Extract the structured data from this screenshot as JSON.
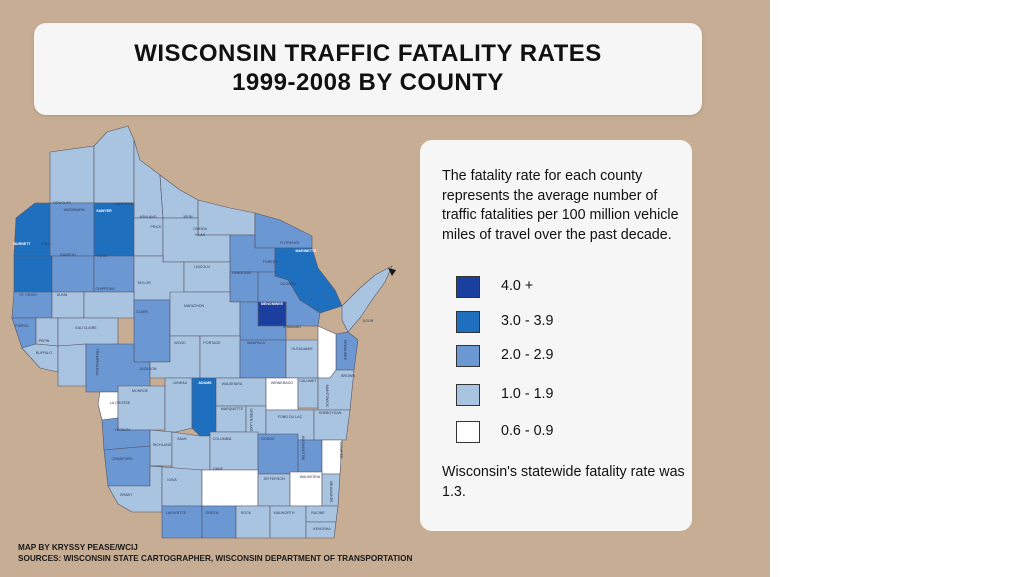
{
  "title": {
    "line1": "WISCONSIN TRAFFIC FATALITY RATES",
    "line2": "1999-2008 BY COUNTY"
  },
  "description": "The fatality rate for each county represents the average number of traffic fatalities per 100 million vehicle miles of travel over the past decade.",
  "legend": [
    {
      "label": "4.0 +",
      "color": "#1b3f9e"
    },
    {
      "label": "3.0 - 3.9",
      "color": "#1f6fbf"
    },
    {
      "label": "2.0 - 2.9",
      "color": "#6b97d3"
    },
    {
      "label": "1.0 - 1.9",
      "color": "#a9c4e0"
    },
    {
      "label": "0.6 - 0.9",
      "color": "#ffffff"
    }
  ],
  "statewide": "Wisconsin's statewide fatality rate was 1.3.",
  "credits": {
    "line1": "MAP BY KRYSSY PEASE/WCIJ",
    "line2": "SOURCES: WISCONSIN STATE CARTOGRAPHER, WISCONSIN DEPARTMENT OF TRANSPORTATION"
  },
  "counties": [
    {
      "name": "DOUGLAS",
      "class": 1
    },
    {
      "name": "BAYFIELD",
      "class": 1
    },
    {
      "name": "ASHLAND",
      "class": 1
    },
    {
      "name": "IRON",
      "class": 1
    },
    {
      "name": "VILAS",
      "class": 1
    },
    {
      "name": "FLORENCE",
      "class": 2
    },
    {
      "name": "BURNETT",
      "class": 3
    },
    {
      "name": "WASHBURN",
      "class": 2
    },
    {
      "name": "SAWYER",
      "class": 3
    },
    {
      "name": "PRICE",
      "class": 1
    },
    {
      "name": "ONEIDA",
      "class": 1
    },
    {
      "name": "FOREST",
      "class": 2
    },
    {
      "name": "MARINETTE",
      "class": 3
    },
    {
      "name": "POLK",
      "class": 3
    },
    {
      "name": "BARRON",
      "class": 2
    },
    {
      "name": "RUSK",
      "class": 2
    },
    {
      "name": "TAYLOR",
      "class": 1
    },
    {
      "name": "LINCOLN",
      "class": 1
    },
    {
      "name": "LANGLADE",
      "class": 2
    },
    {
      "name": "OCONTO",
      "class": 2
    },
    {
      "name": "MENOMINEE",
      "class": 4
    },
    {
      "name": "ST. CROIX",
      "class": 2
    },
    {
      "name": "DUNN",
      "class": 1
    },
    {
      "name": "CHIPPEWA",
      "class": 1
    },
    {
      "name": "CLARK",
      "class": 2
    },
    {
      "name": "MARATHON",
      "class": 1
    },
    {
      "name": "SHAWANO",
      "class": 2
    },
    {
      "name": "PIERCE",
      "class": 2
    },
    {
      "name": "PEPIN",
      "class": 1
    },
    {
      "name": "EAU CLAIRE",
      "class": 1
    },
    {
      "name": "DOOR",
      "class": 1
    },
    {
      "name": "KEWAUNEE",
      "class": 2
    },
    {
      "name": "BUFFALO",
      "class": 1
    },
    {
      "name": "TREMPEALEAU",
      "class": 1
    },
    {
      "name": "JACKSON",
      "class": 2
    },
    {
      "name": "WOOD",
      "class": 1
    },
    {
      "name": "PORTAGE",
      "class": 1
    },
    {
      "name": "WAUPACA",
      "class": 2
    },
    {
      "name": "OUTAGAMIE",
      "class": 1
    },
    {
      "name": "BROWN",
      "class": 0
    },
    {
      "name": "LA CROSSE",
      "class": 0
    },
    {
      "name": "MONROE",
      "class": 1
    },
    {
      "name": "JUNEAU",
      "class": 1
    },
    {
      "name": "ADAMS",
      "class": 3
    },
    {
      "name": "WAUSHARA",
      "class": 1
    },
    {
      "name": "WINNEBAGO",
      "class": 0
    },
    {
      "name": "CALUMET",
      "class": 1
    },
    {
      "name": "MANITOWOC",
      "class": 1
    },
    {
      "name": "VERNON",
      "class": 2
    },
    {
      "name": "RICHLAND",
      "class": 1
    },
    {
      "name": "SAUK",
      "class": 1
    },
    {
      "name": "MARQUETTE",
      "class": 1
    },
    {
      "name": "GREEN LAKE",
      "class": 1
    },
    {
      "name": "FOND DU LAC",
      "class": 1
    },
    {
      "name": "SHEBOYGAN",
      "class": 1
    },
    {
      "name": "CRAWFORD",
      "class": 2
    },
    {
      "name": "COLUMBIA",
      "class": 1
    },
    {
      "name": "DODGE",
      "class": 2
    },
    {
      "name": "WASHINGTON",
      "class": 2
    },
    {
      "name": "OZAUKEE",
      "class": 0
    },
    {
      "name": "GRANT",
      "class": 1
    },
    {
      "name": "IOWA",
      "class": 1
    },
    {
      "name": "DANE",
      "class": 0
    },
    {
      "name": "JEFFERSON",
      "class": 1
    },
    {
      "name": "WAUKESHA",
      "class": 0
    },
    {
      "name": "MILWAUKEE",
      "class": 1
    },
    {
      "name": "LAFAYETTE",
      "class": 2
    },
    {
      "name": "GREEN",
      "class": 2
    },
    {
      "name": "ROCK",
      "class": 1
    },
    {
      "name": "WALWORTH",
      "class": 1
    },
    {
      "name": "RACINE",
      "class": 1
    },
    {
      "name": "KENOSHA",
      "class": 1
    }
  ]
}
